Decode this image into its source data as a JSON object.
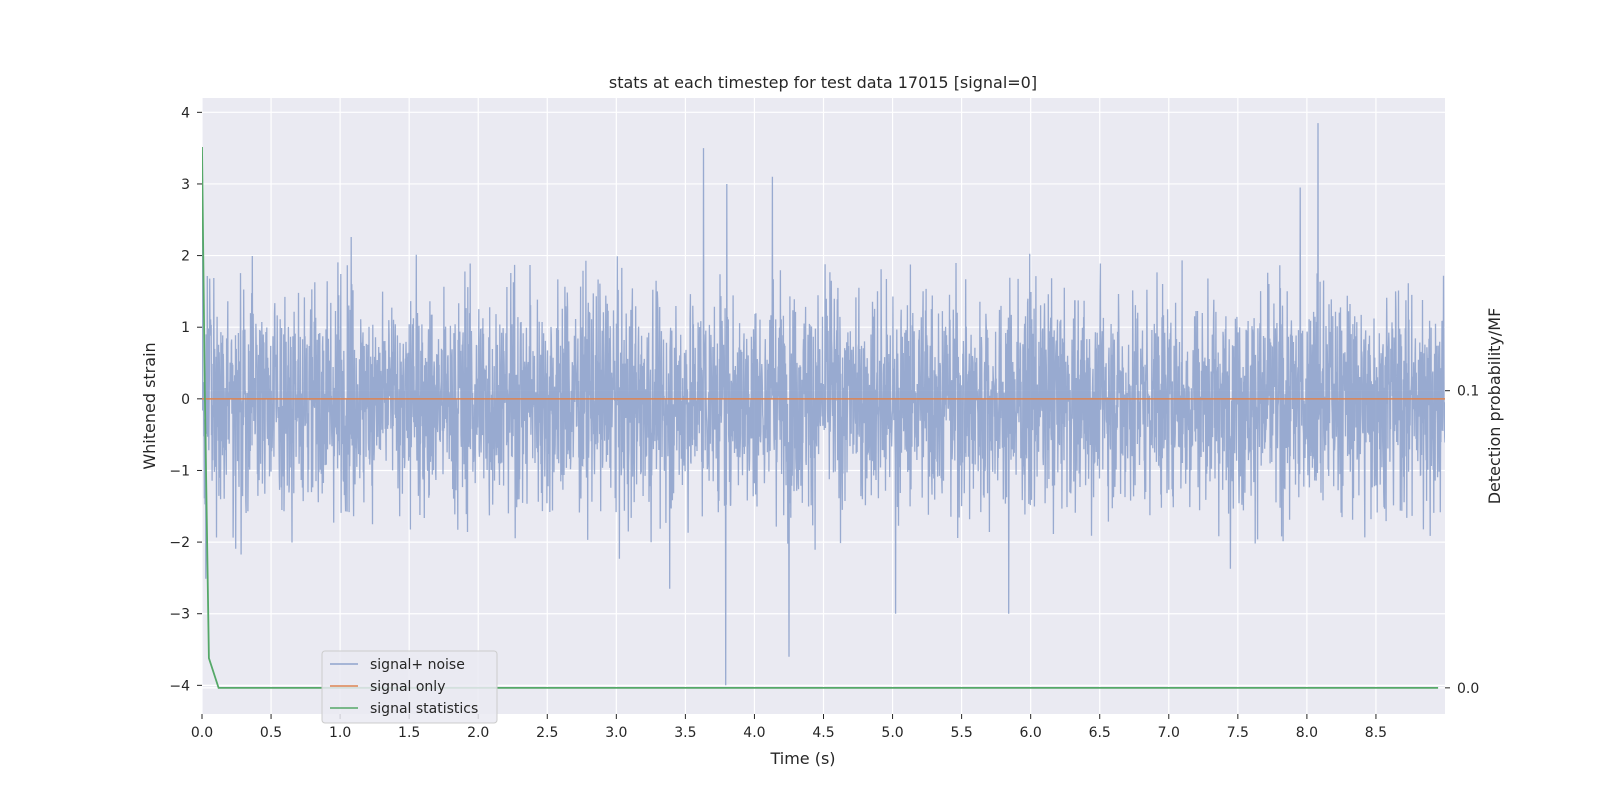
{
  "colors": {
    "background": "#eaeaf2",
    "grid": "#ffffff",
    "noise": "#8fa3cc",
    "signal_only": "#dd8452",
    "statistics": "#55a868"
  },
  "chart_data": {
    "type": "line",
    "title": "stats at each timestep for test data 17015 [signal=0]",
    "xlabel": "Time (s)",
    "ylabel_left": "Whitened strain",
    "ylabel_right": "Detection probability/MF",
    "xlim": [
      0,
      9.0
    ],
    "ylim_left": [
      -4.4,
      4.2
    ],
    "ylim_right": [
      -0.0088,
      0.1985
    ],
    "x_ticks": [
      "0.0",
      "0.5",
      "1.0",
      "1.5",
      "2.0",
      "2.5",
      "3.0",
      "3.5",
      "4.0",
      "4.5",
      "5.0",
      "5.5",
      "6.0",
      "6.5",
      "7.0",
      "7.5",
      "8.0",
      "8.5"
    ],
    "y_ticks_left": [
      "−4",
      "−3",
      "−2",
      "−1",
      "0",
      "1",
      "2",
      "3",
      "4"
    ],
    "y_ticks_right": [
      "0.0",
      "0.1"
    ],
    "grid": true,
    "legend_position": "lower-left",
    "series": [
      {
        "name": "signal+ noise",
        "color": "#8fa3cc",
        "description": "whitened noisy strain, dense fluctuations mostly within ±2",
        "min": -4.0,
        "max": 3.85,
        "notable_peaks": [
          {
            "x": 3.63,
            "y": 3.5
          },
          {
            "x": 3.8,
            "y": 3.0
          },
          {
            "x": 4.13,
            "y": 3.1
          },
          {
            "x": 4.25,
            "y": -3.6
          },
          {
            "x": 3.79,
            "y": -4.0
          },
          {
            "x": 5.02,
            "y": -3.0
          },
          {
            "x": 5.84,
            "y": -3.0
          },
          {
            "x": 7.95,
            "y": 2.95
          },
          {
            "x": 8.08,
            "y": 3.85
          }
        ]
      },
      {
        "name": "signal only",
        "color": "#dd8452",
        "x": [
          0.0,
          9.0
        ],
        "y": [
          0.0,
          0.0
        ]
      },
      {
        "name": "signal statistics",
        "color": "#55a868",
        "axis": "right",
        "x": [
          0.0,
          0.02,
          0.05,
          0.12,
          1.0,
          2.0,
          3.0,
          4.0,
          5.0,
          6.0,
          7.0,
          8.0,
          8.95
        ],
        "y": [
          0.182,
          0.1,
          0.01,
          0.0,
          0.0,
          0.0,
          0.0,
          0.0,
          0.0,
          0.0,
          0.0,
          0.0,
          0.0
        ]
      }
    ]
  }
}
